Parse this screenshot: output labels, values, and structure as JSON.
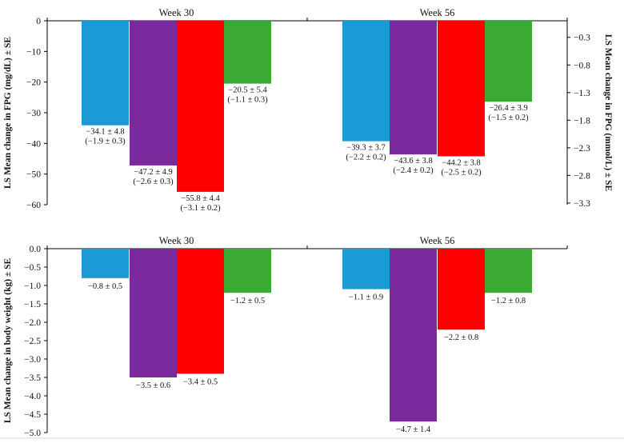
{
  "chart_data": [
    {
      "type": "bar",
      "panel": "fpg",
      "groups": [
        {
          "label": "Week 30",
          "values": [
            -34.1,
            -47.2,
            -55.8,
            -20.5
          ],
          "labels": [
            [
              "−34.1 ± 4.8",
              "(−1.9 ± 0.3)"
            ],
            [
              "−47.2 ± 4.9",
              "(−2.6 ± 0.3)"
            ],
            [
              "−55.8 ± 4.4",
              "(−3.1 ± 0.2)"
            ],
            [
              "−20.5 ± 5.4",
              "(−1.1 ± 0.3)"
            ]
          ]
        },
        {
          "label": "Week 56",
          "values": [
            -39.3,
            -43.6,
            -44.2,
            -26.4
          ],
          "labels": [
            [
              "−39.3 ± 3.7",
              "(−2.2 ± 0.2)"
            ],
            [
              "−43.6 ± 3.8",
              "(−2.4 ± 0.2)"
            ],
            [
              "−44.2 ± 3.8",
              "(−2.5 ± 0.2)"
            ],
            [
              "−26.4 ± 3.9",
              "(−1.5 ± 0.2)"
            ]
          ]
        }
      ],
      "ylabel": "LS Mean change in FPG (mg/dL) ± SE",
      "ylim": [
        -60,
        0
      ],
      "yticks": [
        0,
        -10,
        -20,
        -30,
        -40,
        -50,
        -60
      ],
      "ytick_labels": [
        "0",
        "−10",
        "−20",
        "−30",
        "−40",
        "−50",
        "−60"
      ],
      "y2label": "LS Mean change in FPG (mmol/L) ± SE",
      "y2ticks": [
        -0.3,
        -0.8,
        -1.3,
        -1.8,
        -2.3,
        -2.8,
        -3.3
      ],
      "y2tick_labels": [
        "−0.3",
        "−0.8",
        "−1.3",
        "−1.8",
        "−2.3",
        "−2.8",
        "−3.3"
      ],
      "mmol_per_mgdl": 0.0555
    },
    {
      "type": "bar",
      "panel": "weight",
      "groups": [
        {
          "label": "Week 30",
          "values": [
            -0.8,
            -3.5,
            -3.4,
            -1.2
          ],
          "labels": [
            [
              "−0.8 ± 0.5"
            ],
            [
              "−3.5 ± 0.6"
            ],
            [
              "−3.4 ± 0.5"
            ],
            [
              "−1.2 ± 0.5"
            ]
          ]
        },
        {
          "label": "Week 56",
          "values": [
            -1.1,
            -4.7,
            -2.2,
            -1.2
          ],
          "labels": [
            [
              "−1.1 ± 0.9"
            ],
            [
              "−4.7 ± 1.4"
            ],
            [
              "−2.2 ± 0.8"
            ],
            [
              "−1.2 ± 0.8"
            ]
          ]
        }
      ],
      "ylabel": "LS Mean change in body weight (kg) ± SE",
      "ylim": [
        -5.0,
        0.0
      ],
      "yticks": [
        0,
        -0.5,
        -1,
        -1.5,
        -2,
        -2.5,
        -3,
        -3.5,
        -4,
        -4.5,
        -5
      ],
      "ytick_labels": [
        "0.0",
        "−0.5",
        "−1.0",
        "−1.5",
        "−2.0",
        "−2.5",
        "−3.0",
        "−3.5",
        "−4.0",
        "−4.5",
        "−5.0"
      ]
    }
  ],
  "colors": [
    "#1b9ad6",
    "#7b2a9e",
    "#ff0000",
    "#3aaa35"
  ]
}
